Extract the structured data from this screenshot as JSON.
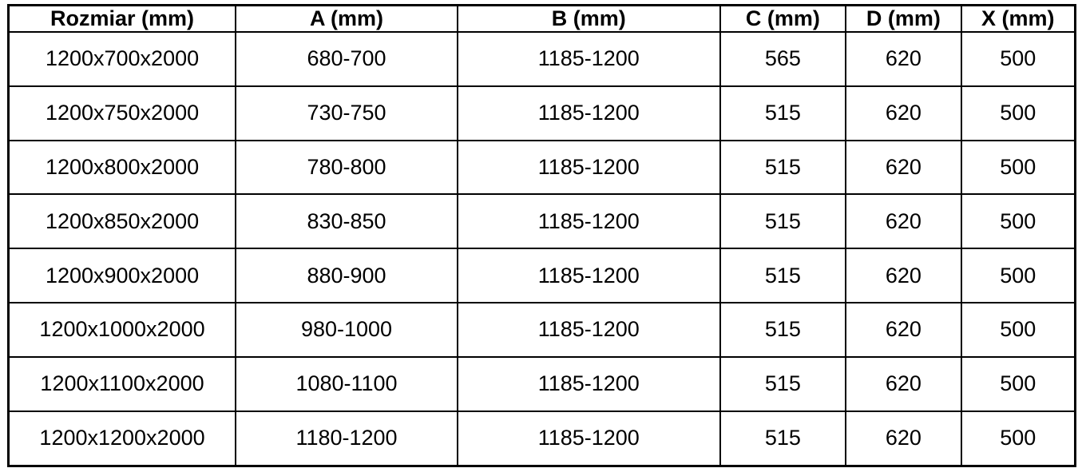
{
  "table": {
    "name": "size-specification-table",
    "columns": [
      "Rozmiar (mm)",
      "A (mm)",
      "B (mm)",
      "C (mm)",
      "D (mm)",
      "X (mm)"
    ],
    "rows": [
      [
        "1200x700x2000",
        "680-700",
        "1185-1200",
        "565",
        "620",
        "500"
      ],
      [
        "1200x750x2000",
        "730-750",
        "1185-1200",
        "515",
        "620",
        "500"
      ],
      [
        "1200x800x2000",
        "780-800",
        "1185-1200",
        "515",
        "620",
        "500"
      ],
      [
        "1200x850x2000",
        "830-850",
        "1185-1200",
        "515",
        "620",
        "500"
      ],
      [
        "1200x900x2000",
        "880-900",
        "1185-1200",
        "515",
        "620",
        "500"
      ],
      [
        "1200x1000x2000",
        "980-1000",
        "1185-1200",
        "515",
        "620",
        "500"
      ],
      [
        "1200x1100x2000",
        "1080-1100",
        "1185-1200",
        "515",
        "620",
        "500"
      ],
      [
        "1200x1200x2000",
        "1180-1200",
        "1185-1200",
        "515",
        "620",
        "500"
      ]
    ],
    "colors": {
      "border": "#000000",
      "text": "#000000",
      "background": "#ffffff"
    }
  }
}
